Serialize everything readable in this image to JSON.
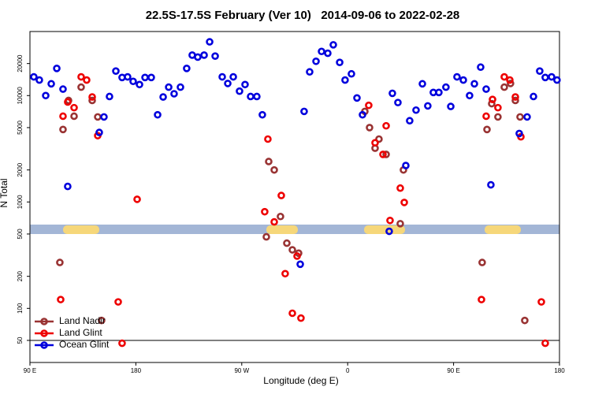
{
  "chart_data": {
    "type": "scatter",
    "title": "22.5S-17.5S February (Ver 10)   2014-09-06 to 2022-02-28",
    "x_label": "Longitude (deg E)",
    "y_label": "N Total",
    "xlim": [
      90,
      540
    ],
    "xticks": [
      {
        "value": 90,
        "label": "90 E"
      },
      {
        "value": 180,
        "label": "180"
      },
      {
        "value": 270,
        "label": "90 W"
      },
      {
        "value": 360,
        "label": "0"
      },
      {
        "value": 450,
        "label": "90 E"
      },
      {
        "value": 540,
        "label": "180"
      }
    ],
    "ylim": [
      31,
      40000
    ],
    "y_log": true,
    "yticks": [
      50,
      100,
      200,
      500,
      1000,
      2000,
      5000,
      10000,
      20000
    ],
    "legend": "lower left",
    "series": [
      {
        "name": "Land Nadir",
        "color": "#993333",
        "x": [
          115.4,
          118.1,
          122.8,
          127.5,
          133.5,
          142.9,
          147.6,
          150.9,
          290.9,
          292.9,
          297.6,
          302.9,
          308.3,
          313,
          318.3,
          374.6,
          378.6,
          383.3,
          386.6,
          392.7,
          404.7,
          407.4,
          474.3,
          478.4,
          482.4,
          487.7,
          493.1,
          498.4,
          502.5,
          506.5,
          510.5
        ],
        "values": [
          270,
          4800,
          9000,
          6400,
          12000,
          9000,
          6300,
          77,
          470,
          2400,
          2000,
          730,
          410,
          355,
          330,
          7100,
          5000,
          3200,
          3900,
          2800,
          625,
          2000,
          270,
          4800,
          8400,
          6300,
          12000,
          13000,
          9000,
          6300,
          77
        ]
      },
      {
        "name": "Land Glint",
        "color": "#ee0000",
        "x": [
          116.1,
          118.1,
          122.1,
          127.5,
          133.5,
          138.2,
          142.9,
          147.6,
          165,
          168.3,
          181.1,
          289.5,
          292.2,
          297.6,
          303.6,
          306.9,
          313,
          317,
          320.3,
          377.9,
          383.3,
          390,
          392.7,
          396,
          404.7,
          408.1,
          473.7,
          477.7,
          483.1,
          487.7,
          493.1,
          497.8,
          502.5,
          507.2,
          524.6,
          527.9
        ],
        "values": [
          121,
          6400,
          8700,
          7700,
          15000,
          14000,
          9700,
          4200,
          115,
          47,
          1060,
          810,
          3900,
          650,
          1150,
          212,
          90,
          310,
          81,
          8100,
          3600,
          2800,
          5200,
          670,
          1350,
          990,
          121,
          6400,
          9200,
          7700,
          15000,
          14000,
          9700,
          4100,
          115,
          47
        ]
      },
      {
        "name": "Ocean Glint",
        "color": "#0000dd",
        "x": [
          93.3,
          98,
          103.4,
          108.1,
          112.8,
          118.1,
          122.1,
          148.9,
          152.9,
          157.6,
          163,
          168.3,
          173,
          177.7,
          183.1,
          187.8,
          193.1,
          198.5,
          203.2,
          207.9,
          212.5,
          217.9,
          223.2,
          227.9,
          232.6,
          238,
          242.7,
          247.4,
          253.4,
          258.1,
          262.8,
          268.1,
          272.8,
          277.5,
          282.8,
          287.5,
          319.7,
          323,
          327.7,
          333.1,
          337.8,
          343.1,
          347.8,
          353.2,
          357.8,
          363.2,
          367.9,
          372.6,
          395.3,
          398,
          402.7,
          409.4,
          412.7,
          418.1,
          423.5,
          428.1,
          432.8,
          437.5,
          443.5,
          447.6,
          452.9,
          458.3,
          463.6,
          467.7,
          473,
          477.7,
          481.7,
          505.8,
          512.5,
          517.9,
          523.2,
          527.9,
          533.3,
          537.9
        ],
        "values": [
          15000,
          14000,
          10000,
          12900,
          18000,
          11500,
          1400,
          4500,
          6300,
          9800,
          17000,
          14800,
          15000,
          13600,
          12700,
          14800,
          14800,
          6600,
          9700,
          12000,
          10400,
          12000,
          18000,
          24000,
          23000,
          24000,
          32000,
          23500,
          15000,
          13000,
          15000,
          11000,
          12700,
          9800,
          9800,
          6600,
          260,
          7100,
          16700,
          21000,
          26000,
          25000,
          30000,
          20500,
          14000,
          16000,
          9500,
          6600,
          530,
          10500,
          8600,
          2200,
          5800,
          7300,
          12900,
          8000,
          10700,
          10700,
          12000,
          7900,
          15000,
          14000,
          10000,
          12900,
          18500,
          11500,
          1450,
          4400,
          6300,
          9800,
          17000,
          14800,
          15000,
          14000
        ]
      }
    ]
  }
}
